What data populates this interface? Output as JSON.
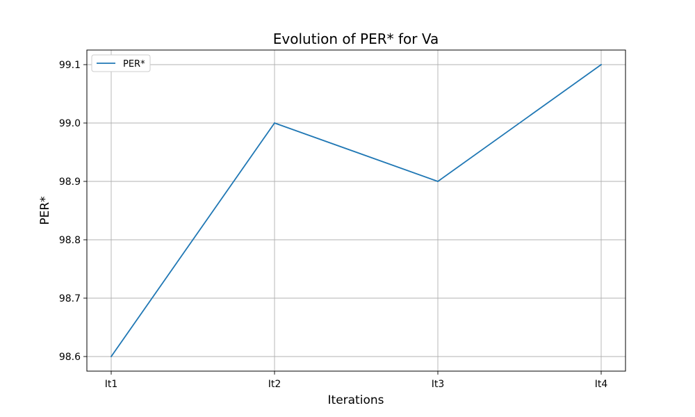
{
  "chart_data": {
    "type": "line",
    "title": "Evolution of PER* for Va",
    "xlabel": "Iterations",
    "ylabel": "PER*",
    "categories": [
      "It1",
      "It2",
      "It3",
      "It4"
    ],
    "series": [
      {
        "name": "PER*",
        "values": [
          98.6,
          99.0,
          98.9,
          99.1
        ]
      }
    ],
    "y_ticks": [
      "98.6",
      "98.7",
      "98.8",
      "98.9",
      "99.0",
      "99.1"
    ],
    "ylim": [
      98.575,
      99.125
    ],
    "grid": true,
    "legend_position": "top-left",
    "series_color": "#1f77b4"
  }
}
